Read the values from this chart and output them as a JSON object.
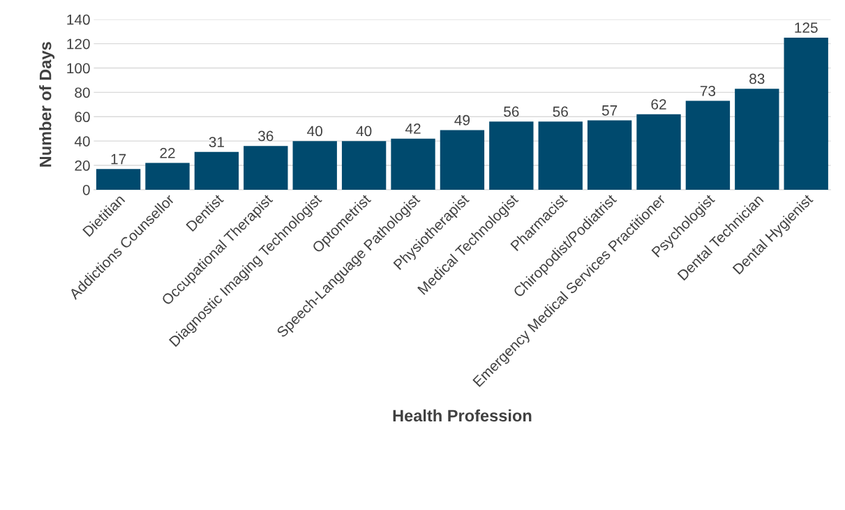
{
  "chart_data": {
    "type": "bar",
    "categories": [
      "Dietitian",
      "Addictions Counsellor",
      "Dentist",
      "Occupational Therapist",
      "Diagnostic Imaging Technologist",
      "Optometrist",
      "Speech-Language Pathologist",
      "Physiotherapist",
      "Medical Technologist",
      "Pharmacist",
      "Chiropodist/Podiatrist",
      "Emergency Medical Services Practitioner",
      "Psychologist",
      "Dental Technician",
      "Dental Hygienist"
    ],
    "values": [
      17,
      22,
      31,
      36,
      40,
      40,
      42,
      49,
      56,
      56,
      57,
      62,
      73,
      83,
      125
    ],
    "color": "#004a6e",
    "xlabel": "Health Profession",
    "ylabel": "Number of Days",
    "ylim": [
      0,
      140
    ],
    "yticks": [
      0,
      20,
      40,
      60,
      80,
      100,
      120,
      140
    ],
    "grid": "y",
    "data_labels": true
  }
}
